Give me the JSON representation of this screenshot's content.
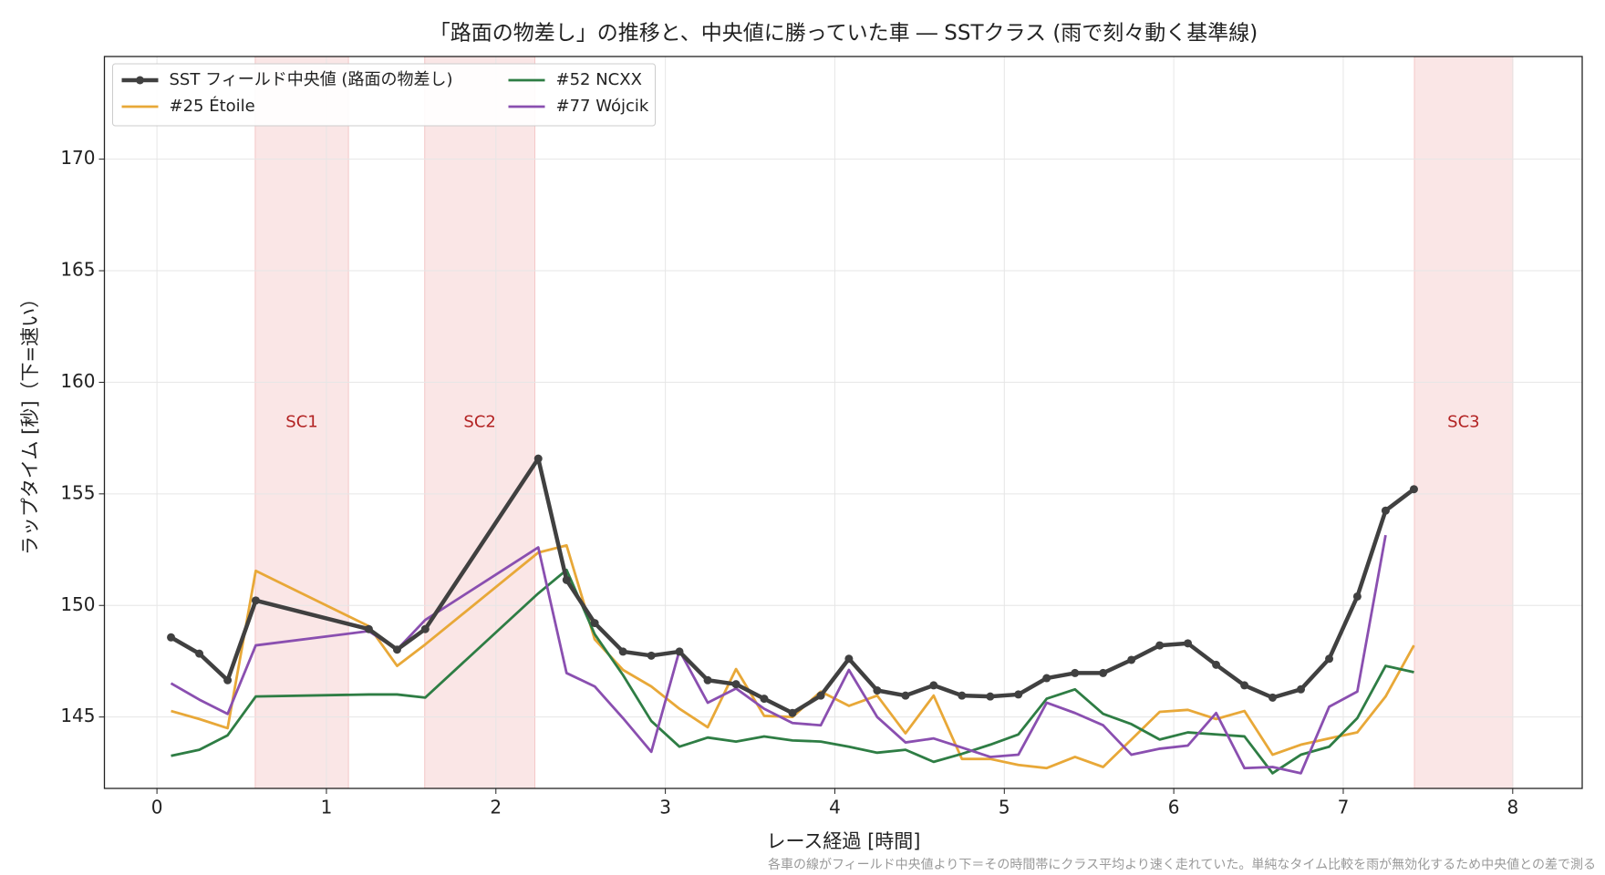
{
  "chart_data": {
    "type": "line",
    "title": "「路面の物差し」の推移と、中央値に勝っていた車 ― SSTクラス (雨で刻々動く基準線)",
    "x_label": "レース経過 [時間]",
    "y_label": "ラップタイム [秒]（下=速い）",
    "footnote": "各車の線がフィールド中央値より下＝その時間帯にクラス平均より速く走れていた。単純なタイム比較を雨が無効化するため中央値との差で測る",
    "x": [
      0.083,
      0.25,
      0.417,
      0.583,
      1.25,
      1.417,
      1.583,
      2.25,
      2.417,
      2.583,
      2.75,
      2.917,
      3.083,
      3.25,
      3.417,
      3.583,
      3.75,
      3.917,
      4.083,
      4.25,
      4.417,
      4.583,
      4.75,
      4.917,
      5.083,
      5.25,
      5.417,
      5.583,
      5.75,
      5.917,
      6.083,
      6.25,
      6.417,
      6.583,
      6.75,
      6.917,
      7.083,
      7.25,
      7.417
    ],
    "series": [
      {
        "name": "SST フィールド中央値 (路面の物差し)",
        "color": "#404040",
        "marker": true,
        "values": [
          148.57,
          147.84,
          146.65,
          150.22,
          148.94,
          148.02,
          148.94,
          156.58,
          151.14,
          149.21,
          147.93,
          147.75,
          147.93,
          146.65,
          146.47,
          145.82,
          145.18,
          145.96,
          147.61,
          146.19,
          145.96,
          146.42,
          145.96,
          145.92,
          146.01,
          146.74,
          146.97,
          146.97,
          147.56,
          148.21,
          148.3,
          147.34,
          146.42,
          145.87,
          146.24,
          147.61,
          150.4,
          154.25,
          155.21
        ]
      },
      {
        "name": "#25 Étoile",
        "color": "#e8a838",
        "marker": false,
        "values": [
          145.27,
          144.91,
          144.5,
          151.55,
          149.07,
          147.29,
          148.25,
          152.37,
          152.69,
          148.48,
          147.11,
          146.37,
          145.37,
          144.54,
          147.15,
          145.05,
          145.0,
          146.14,
          145.5,
          145.96,
          144.27,
          145.96,
          143.12,
          143.12,
          142.85,
          142.71,
          143.21,
          142.76,
          143.99,
          145.23,
          145.32,
          144.91,
          145.27,
          143.31,
          143.76,
          144.04,
          144.31,
          145.92,
          148.21
        ]
      },
      {
        "name": "#52 NCXX",
        "color": "#2e7d44",
        "marker": false,
        "values": [
          143.26,
          143.53,
          144.18,
          145.92,
          146.01,
          146.01,
          145.87,
          150.54,
          151.59,
          148.71,
          146.88,
          144.82,
          143.67,
          144.08,
          143.9,
          144.13,
          143.95,
          143.9,
          143.67,
          143.4,
          143.53,
          142.99,
          143.35,
          143.76,
          144.22,
          145.82,
          146.24,
          145.14,
          144.68,
          143.99,
          144.31,
          144.22,
          144.13,
          142.48,
          143.31,
          143.67,
          144.95,
          147.29,
          147.01
        ]
      },
      {
        "name": "#77 Wójcik",
        "color": "#8a4fb0",
        "marker": false,
        "values": [
          146.51,
          145.78,
          145.14,
          148.21,
          148.85,
          148.02,
          149.35,
          152.6,
          146.97,
          146.37,
          144.95,
          143.44,
          147.98,
          145.64,
          146.28,
          145.37,
          144.73,
          144.63,
          147.11,
          145.0,
          143.86,
          144.04,
          143.63,
          143.21,
          143.31,
          145.64,
          145.18,
          144.63,
          143.31,
          143.58,
          143.72,
          145.18,
          142.71,
          142.76,
          142.48,
          145.46,
          146.14,
          153.15,
          null
        ]
      }
    ],
    "shaded_regions": [
      {
        "label": "SC1",
        "range": [
          0.58,
          1.13
        ]
      },
      {
        "label": "SC2",
        "range": [
          1.58,
          2.23
        ]
      },
      {
        "label": "SC3",
        "range": [
          7.42,
          8.0
        ]
      }
    ],
    "shade_color": "#f4c7c7",
    "shade_label_color": "#b22222",
    "xlim": [
      -0.31,
      8.41
    ],
    "ylim": [
      141.8,
      174.6
    ],
    "xticks": [
      0,
      1,
      2,
      3,
      4,
      5,
      6,
      7,
      8
    ],
    "yticks": [
      145,
      150,
      155,
      160,
      165,
      170
    ],
    "grid": true,
    "legend_position": "upper left",
    "legend_columns": 2
  }
}
